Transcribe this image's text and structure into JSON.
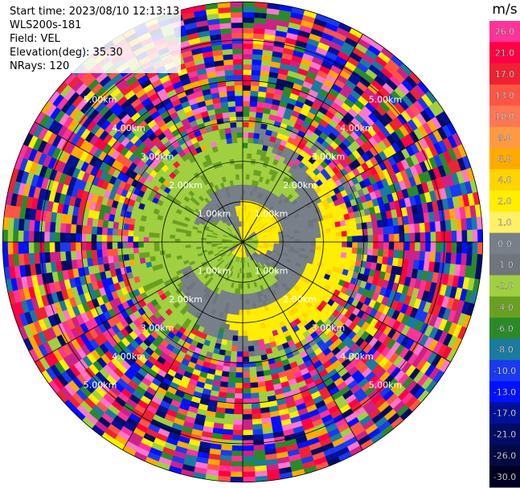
{
  "header": {
    "start_time": "Start time: 2023/08/10 12:13:13",
    "instrument": "WLS200s-181",
    "field": "Field: VEL",
    "elevation": "Elevation(deg): 35.30",
    "nrays": "NRays: 120"
  },
  "colorbar": {
    "unit": "m/s",
    "entries": [
      {
        "label": "26.0",
        "color": "#ff3399"
      },
      {
        "label": "21.0",
        "color": "#ff0044"
      },
      {
        "label": "17.0",
        "color": "#ee2233"
      },
      {
        "label": "13.0",
        "color": "#ff5544"
      },
      {
        "label": "10.0",
        "color": "#ff7755"
      },
      {
        "label": "8.0",
        "color": "#ff9944"
      },
      {
        "label": "6.0",
        "color": "#ffaa00"
      },
      {
        "label": "4.0",
        "color": "#ffd400"
      },
      {
        "label": "2.0",
        "color": "#ffee00"
      },
      {
        "label": "1.0",
        "color": "#fff066"
      },
      {
        "label": "0.0",
        "color": "#777f88"
      },
      {
        "label": "-1.0",
        "color": "#6e757d"
      },
      {
        "label": "-2.0",
        "color": "#a0d040"
      },
      {
        "label": "-4.0",
        "color": "#6aa022"
      },
      {
        "label": "-6.0",
        "color": "#2a8a2a"
      },
      {
        "label": "-8.0",
        "color": "#1a7aa0"
      },
      {
        "label": "-10.0",
        "color": "#1a3af0"
      },
      {
        "label": "-13.0",
        "color": "#0011ff"
      },
      {
        "label": "-17.0",
        "color": "#001199"
      },
      {
        "label": "-21.0",
        "color": "#000c66"
      },
      {
        "label": "-26.0",
        "color": "#000a44"
      },
      {
        "label": "-30.0",
        "color": "#000022"
      }
    ]
  },
  "chart_data": {
    "type": "heatmap",
    "projection": "polar",
    "range_rings_km": [
      1,
      2,
      3,
      4,
      5
    ],
    "ring_labels": [
      "1.00km",
      "2.00km",
      "3.00km",
      "4.00km",
      "5.00km"
    ],
    "max_range_km": 5.95,
    "radial_spokes_deg": [
      0,
      30,
      60,
      90,
      120,
      150,
      180,
      210,
      240,
      270,
      300,
      330
    ],
    "nrays": 120,
    "field": "VEL",
    "value_range": [
      -30,
      26
    ],
    "regions": [
      {
        "description": "near-field swirl",
        "r_km": [
          0,
          2.8
        ],
        "values": "mixed -2.0 to 2.0 (green/grey/yellow)"
      },
      {
        "description": "noise ring",
        "r_km": [
          2.8,
          5.95
        ],
        "values": "random full-scale"
      }
    ]
  }
}
